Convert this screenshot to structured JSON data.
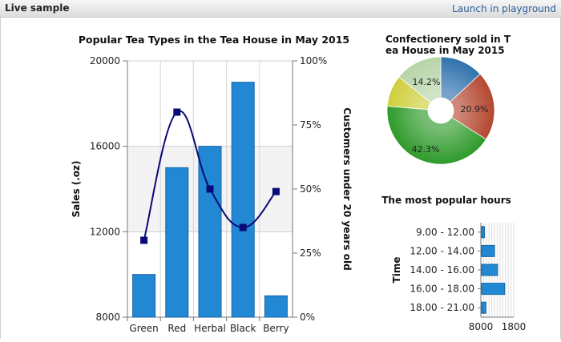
{
  "header": {
    "title": "Live sample",
    "link_label": "Launch in playground"
  },
  "chart_data": [
    {
      "type": "bar",
      "title": "Popular Tea Types in the Tea House in May 2015",
      "ylabel": "Sales (.oz)",
      "y2label": "Customers under 20 years old",
      "categories": [
        "Green",
        "Red",
        "Herbal",
        "Black",
        "Berry"
      ],
      "ylim": [
        8000,
        20000
      ],
      "yticks": [
        "8000",
        "12000",
        "16000",
        "20000"
      ],
      "y2lim": [
        0,
        100
      ],
      "y2ticks": [
        "0%",
        "25%",
        "50%",
        "75%",
        "100%"
      ],
      "bar_color": "#2288d4",
      "line_color": "#0a0a78",
      "series": [
        {
          "values": [
            10000,
            15000,
            16000,
            19000,
            9000
          ]
        },
        {
          "values": [
            30,
            80,
            50,
            35,
            49
          ],
          "type": "line",
          "axis": "secondary"
        }
      ],
      "grid": true
    },
    {
      "type": "pie",
      "title": "Confectionery sold in Tea House in May 2015",
      "title_lines": [
        "Confectionery sold in T",
        "ea House in May 2015"
      ],
      "slice_labels": [
        "20.9%",
        "42.3%",
        "14.2%"
      ],
      "slices": [
        {
          "value": 13.1,
          "color": "#2f72ad"
        },
        {
          "value": 20.9,
          "color": "#b4472f"
        },
        {
          "value": 42.3,
          "color": "#2e9a2a"
        },
        {
          "value": 9.5,
          "color": "#cfcf3c"
        },
        {
          "value": 14.2,
          "color": "#b6d4a8"
        }
      ]
    },
    {
      "type": "bar",
      "orientation": "horizontal",
      "title": "The most popular hours",
      "ylabel": "Time",
      "categories": [
        "9.00 - 12.00",
        "12.00 - 14.00",
        "14.00 - 16.00",
        "16.00 - 18.00",
        "18.00 - 21.00"
      ],
      "values": [
        8120,
        8550,
        8680,
        8980,
        8180
      ],
      "xlim": [
        8000,
        9400
      ],
      "xticks": [
        "8000",
        "1800"
      ],
      "bar_color": "#2288d4",
      "grid": true
    }
  ]
}
